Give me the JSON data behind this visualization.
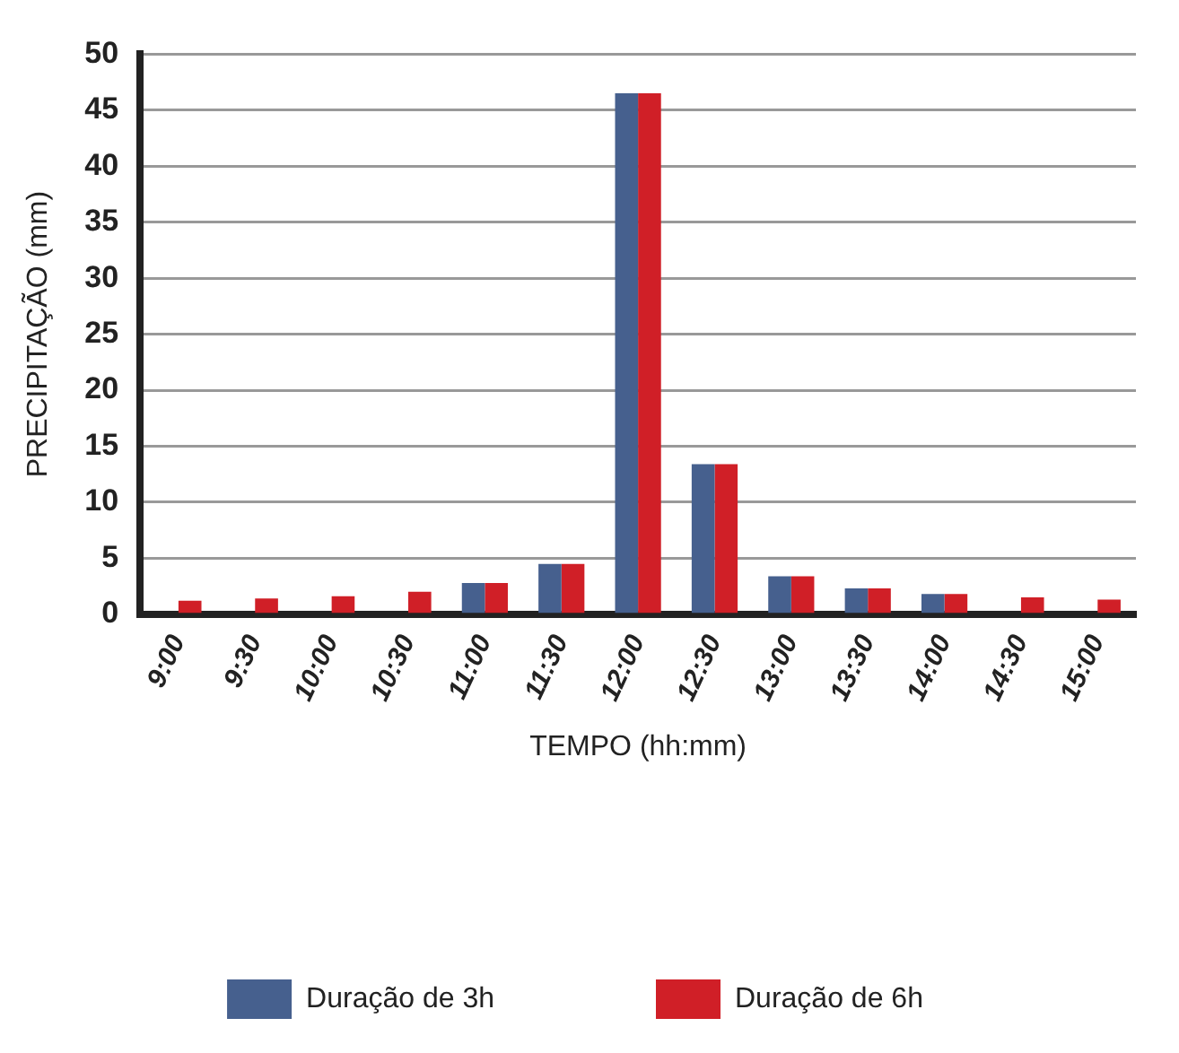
{
  "chart_data": {
    "type": "bar",
    "xlabel": "TEMPO (hh:mm)",
    "ylabel": "PRECIPITAÇÃO (mm)",
    "categories": [
      "9:00",
      "9:30",
      "10:00",
      "10:30",
      "11:00",
      "11:30",
      "12:00",
      "12:30",
      "13:00",
      "13:30",
      "14:00",
      "14:30",
      "15:00"
    ],
    "series": [
      {
        "name": "Duração de 3h",
        "color": "#46608e",
        "values": [
          null,
          null,
          null,
          null,
          2.8,
          4.5,
          46.5,
          13.4,
          3.4,
          2.3,
          1.8,
          null,
          null
        ]
      },
      {
        "name": "Duração de 6h",
        "color": "#d01f27",
        "values": [
          1.2,
          1.4,
          1.6,
          2.0,
          2.8,
          4.5,
          46.5,
          13.4,
          3.4,
          2.3,
          1.8,
          1.5,
          1.3
        ]
      }
    ],
    "ylim": [
      0,
      50
    ],
    "yticks": [
      0,
      5,
      10,
      15,
      20,
      25,
      30,
      35,
      40,
      45,
      50
    ],
    "grid": "y",
    "legend": "bottom"
  }
}
